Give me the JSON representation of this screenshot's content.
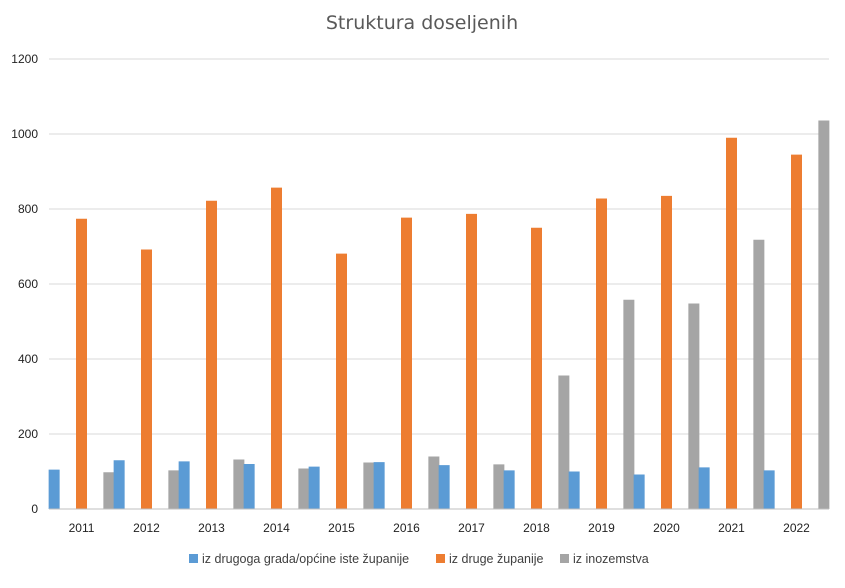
{
  "colors": {
    "series1": "#5B9BD5",
    "series2": "#ED7D31",
    "series3": "#A5A5A5",
    "grid": "#D9D9D9",
    "axis": "#BFBFBF"
  },
  "chart_data": {
    "type": "bar",
    "title": "Struktura doseljenih",
    "xlabel": "",
    "ylabel": "",
    "ylim": [
      0,
      1200
    ],
    "yticks": [
      0,
      200,
      400,
      600,
      800,
      1000,
      1200
    ],
    "grid": true,
    "legend_position": "bottom",
    "categories": [
      "2011",
      "2012",
      "2013",
      "2014",
      "2015",
      "2016",
      "2017",
      "2018",
      "2019",
      "2020",
      "2021",
      "2022"
    ],
    "series": [
      {
        "name": "iz drugoga grada/općine iste županije",
        "values": [
          105,
          130,
          127,
          120,
          113,
          125,
          117,
          103,
          100,
          92,
          111,
          103
        ]
      },
      {
        "name": "iz druge županije",
        "values": [
          774,
          692,
          822,
          857,
          681,
          777,
          787,
          750,
          828,
          835,
          990,
          945
        ]
      },
      {
        "name": "iz inozemstva",
        "values": [
          98,
          103,
          132,
          108,
          124,
          140,
          119,
          356,
          558,
          548,
          718,
          1036
        ]
      }
    ]
  }
}
